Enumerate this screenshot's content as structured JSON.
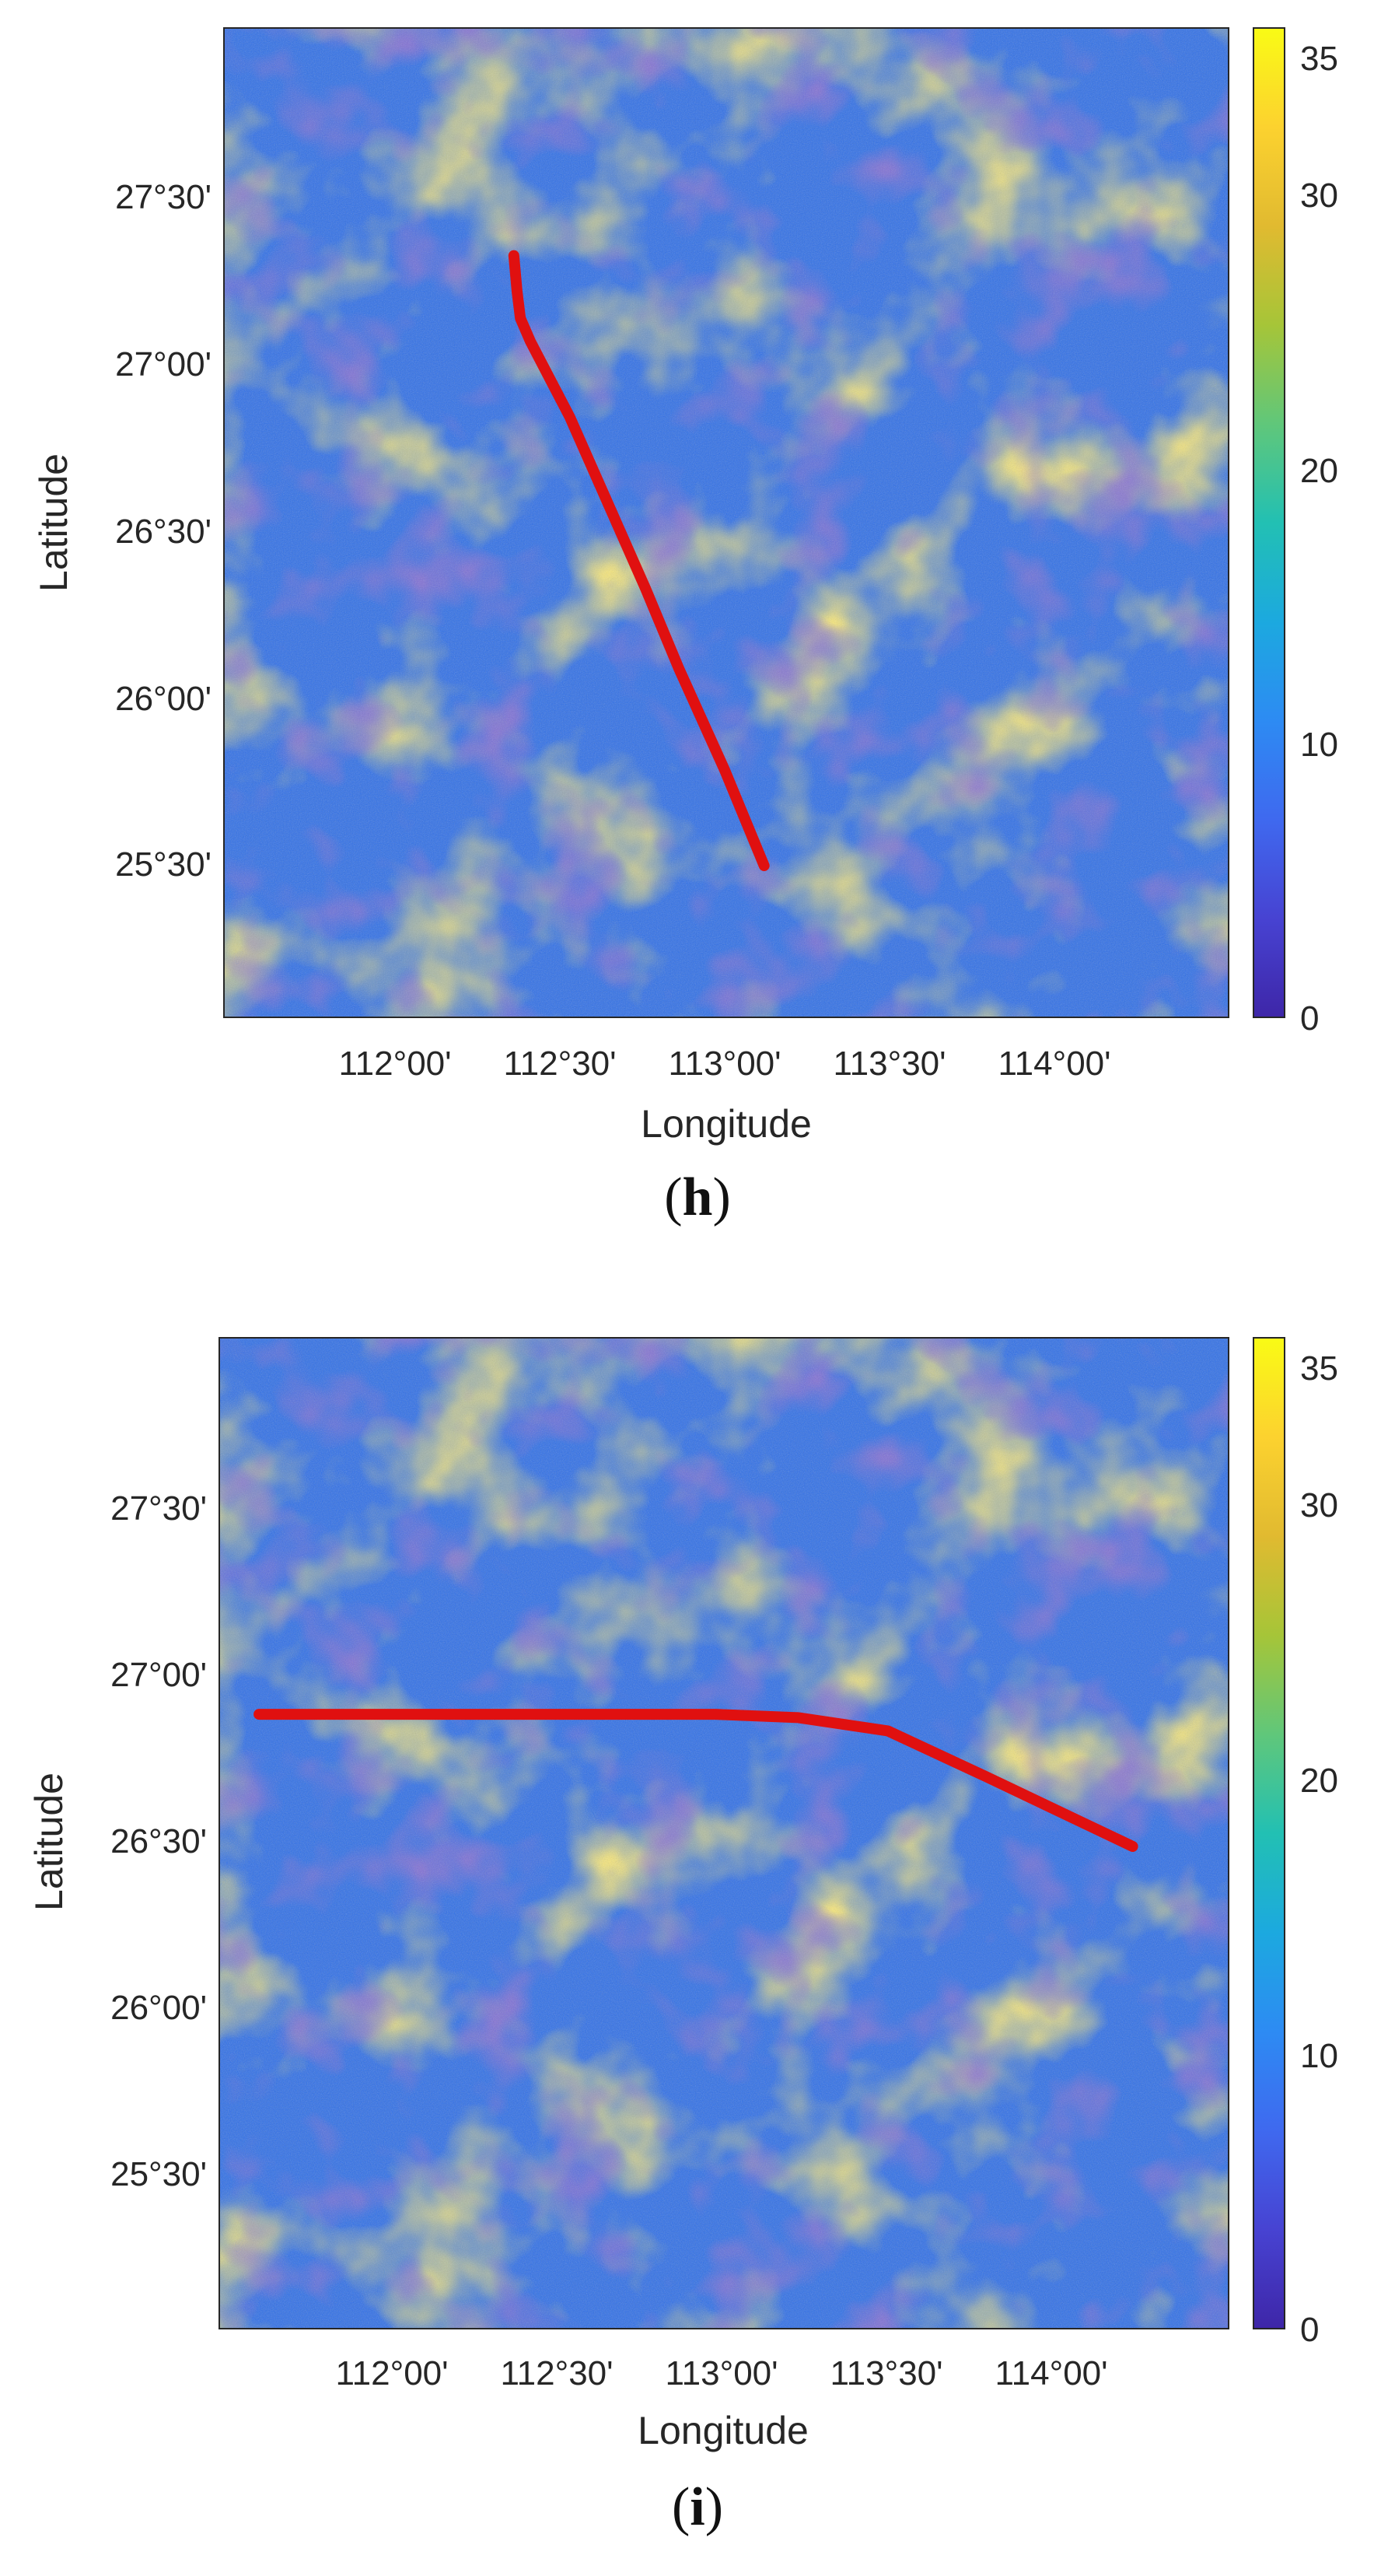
{
  "colors": {
    "route": "#e01010",
    "axis": "#262626",
    "colormap": [
      "#3e26a8",
      "#4743d2",
      "#3f69ef",
      "#2d8bf3",
      "#1ca9df",
      "#22c0b3",
      "#60c77a",
      "#a6c538",
      "#e1ba30",
      "#fcd22f",
      "#f9fb15"
    ]
  },
  "panels": [
    {
      "caption_letter": "h",
      "x_label": "Longitude",
      "y_label": "Latitude",
      "x_ticks": [
        "112°00'",
        "112°30'",
        "113°00'",
        "113°30'",
        "114°00'"
      ],
      "y_ticks": [
        "27°30'",
        "27°00'",
        "26°30'",
        "26°00'",
        "25°30'"
      ],
      "colorbar_ticks": [
        "35",
        "30",
        "20",
        "10",
        "0"
      ],
      "route": [
        [
          112.38,
          27.31
        ],
        [
          112.39,
          27.2
        ],
        [
          112.4,
          27.12
        ],
        [
          112.43,
          27.05
        ],
        [
          112.55,
          26.82
        ],
        [
          112.78,
          26.3
        ],
        [
          112.88,
          26.06
        ],
        [
          113.02,
          25.75
        ],
        [
          113.14,
          25.46
        ]
      ]
    },
    {
      "caption_letter": "i",
      "x_label": "Longitude",
      "y_label": "Latitude",
      "x_ticks": [
        "112°00'",
        "112°30'",
        "113°00'",
        "113°30'",
        "114°00'"
      ],
      "y_ticks": [
        "27°30'",
        "27°00'",
        "26°30'",
        "26°00'",
        "25°30'"
      ],
      "colorbar_ticks": [
        "35",
        "30",
        "20",
        "10",
        "0"
      ],
      "route": [
        [
          111.62,
          26.86
        ],
        [
          112.5,
          26.86
        ],
        [
          113.0,
          26.86
        ],
        [
          113.25,
          26.85
        ],
        [
          113.52,
          26.81
        ],
        [
          113.82,
          26.67
        ],
        [
          114.26,
          26.46
        ]
      ]
    }
  ],
  "chart_data": [
    {
      "type": "heatmap",
      "panel": "h",
      "xlabel": "Longitude",
      "ylabel": "Latitude",
      "x_ticks": [
        "112°00'",
        "112°30'",
        "113°00'",
        "113°30'",
        "114°00'"
      ],
      "y_ticks": [
        "27°30'",
        "27°00'",
        "26°30'",
        "26°00'",
        "25°30'"
      ],
      "xlim": [
        111.5,
        114.55
      ],
      "ylim": [
        25.0,
        28.0
      ],
      "colorbar": {
        "range": [
          0,
          36
        ],
        "ticks": [
          0,
          10,
          20,
          30,
          35
        ]
      },
      "route_lon_lat": [
        [
          112.38,
          27.31
        ],
        [
          112.39,
          27.2
        ],
        [
          112.4,
          27.12
        ],
        [
          112.43,
          27.05
        ],
        [
          112.55,
          26.82
        ],
        [
          112.78,
          26.3
        ],
        [
          112.88,
          26.06
        ],
        [
          113.02,
          25.75
        ],
        [
          113.14,
          25.46
        ]
      ]
    },
    {
      "type": "heatmap",
      "panel": "i",
      "xlabel": "Longitude",
      "ylabel": "Latitude",
      "x_ticks": [
        "112°00'",
        "112°30'",
        "113°00'",
        "113°30'",
        "114°00'"
      ],
      "y_ticks": [
        "27°30'",
        "27°00'",
        "26°30'",
        "26°00'",
        "25°30'"
      ],
      "xlim": [
        111.5,
        114.55
      ],
      "ylim": [
        25.0,
        28.0
      ],
      "colorbar": {
        "range": [
          0,
          36
        ],
        "ticks": [
          0,
          10,
          20,
          30,
          35
        ]
      },
      "route_lon_lat": [
        [
          111.62,
          26.86
        ],
        [
          112.5,
          26.86
        ],
        [
          113.0,
          26.86
        ],
        [
          113.25,
          26.85
        ],
        [
          113.52,
          26.81
        ],
        [
          113.82,
          26.67
        ],
        [
          114.26,
          26.46
        ]
      ]
    }
  ]
}
